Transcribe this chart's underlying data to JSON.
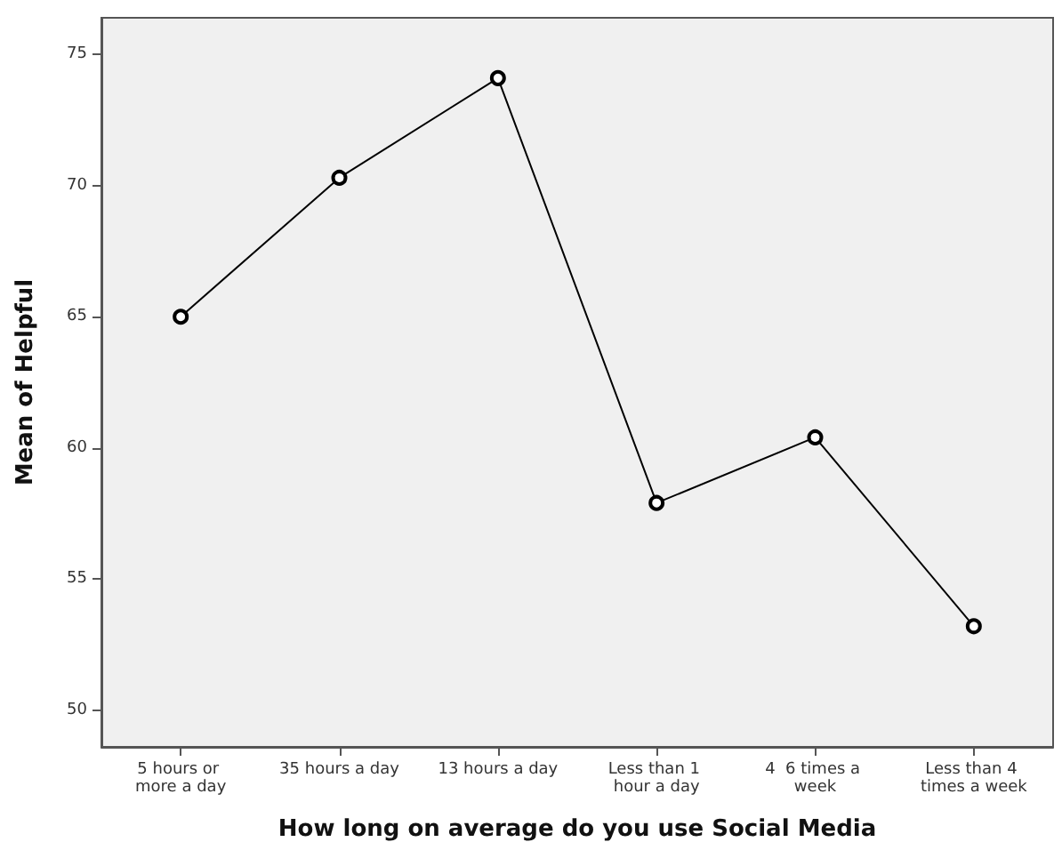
{
  "chart_data": {
    "type": "line",
    "xlabel": "How long on average do you use Social Media",
    "ylabel": "Mean of Helpful",
    "categories": [
      "5 hours or more a day",
      "35 hours a day",
      "13 hours a day",
      "Less than 1 hour a day",
      "4  6 times a week",
      "Less than 4 times a week"
    ],
    "series": [
      {
        "color": "#000000",
        "values": [
          65.0,
          70.3,
          74.1,
          57.9,
          60.4,
          53.2
        ]
      }
    ],
    "ylim": [
      48.6,
      76.4
    ],
    "yticks": [
      50,
      55,
      60,
      65,
      70,
      75
    ],
    "marker": "circle",
    "line_style": "solid",
    "grid": false
  }
}
